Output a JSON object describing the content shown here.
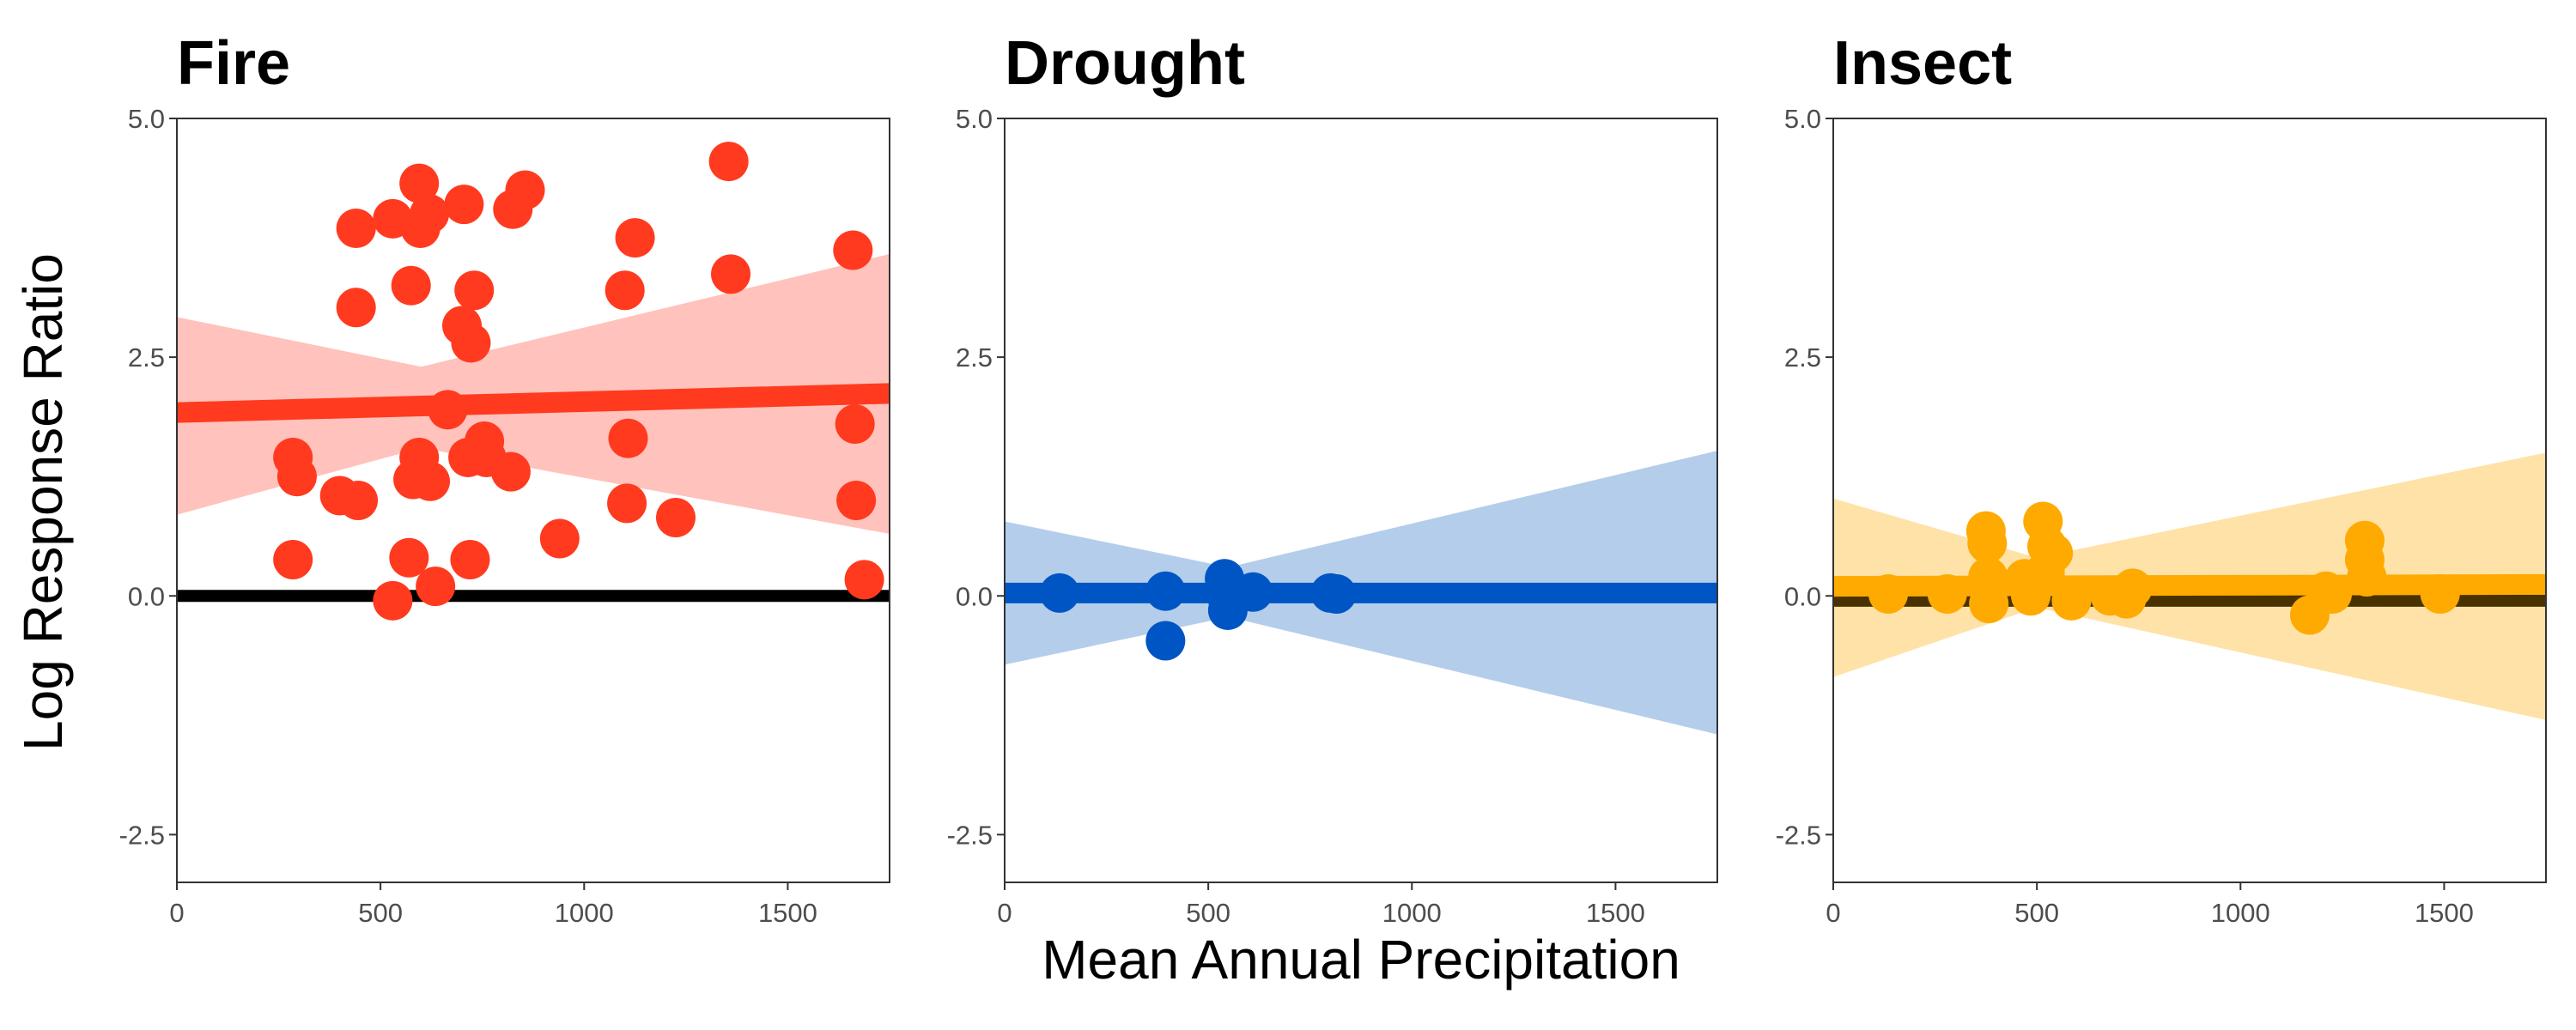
{
  "figure": {
    "ylabel": "Log Response Ratio",
    "xlabel": "Mean Annual Precipitation"
  },
  "chart_data": [
    {
      "type": "scatter",
      "title": "Fire",
      "color": "#FF3A1F",
      "band_color": "#FFC2BC",
      "xlim": [
        0,
        1750
      ],
      "ylim": [
        -3.0,
        5.0
      ],
      "x_ticks": [
        "0",
        "500",
        "1000",
        "1500"
      ],
      "y_ticks": [
        "5.0",
        "2.5",
        "0.0",
        "-2.5"
      ],
      "grid": false,
      "points": [
        {
          "x": 285,
          "y": 1.45
        },
        {
          "x": 295,
          "y": 1.25
        },
        {
          "x": 285,
          "y": 0.38
        },
        {
          "x": 400,
          "y": 1.05
        },
        {
          "x": 445,
          "y": 1.0
        },
        {
          "x": 440,
          "y": 3.85
        },
        {
          "x": 440,
          "y": 3.02
        },
        {
          "x": 530,
          "y": 3.95
        },
        {
          "x": 530,
          "y": -0.05
        },
        {
          "x": 570,
          "y": 0.4
        },
        {
          "x": 575,
          "y": 3.25
        },
        {
          "x": 580,
          "y": 1.22
        },
        {
          "x": 595,
          "y": 1.45
        },
        {
          "x": 595,
          "y": 4.32
        },
        {
          "x": 598,
          "y": 3.85
        },
        {
          "x": 620,
          "y": 4.0
        },
        {
          "x": 622,
          "y": 1.2
        },
        {
          "x": 635,
          "y": 0.1
        },
        {
          "x": 665,
          "y": 1.95
        },
        {
          "x": 700,
          "y": 2.83
        },
        {
          "x": 705,
          "y": 4.1
        },
        {
          "x": 715,
          "y": 1.45
        },
        {
          "x": 720,
          "y": 0.38
        },
        {
          "x": 722,
          "y": 2.65
        },
        {
          "x": 730,
          "y": 3.2
        },
        {
          "x": 755,
          "y": 1.62
        },
        {
          "x": 760,
          "y": 1.45
        },
        {
          "x": 820,
          "y": 1.3
        },
        {
          "x": 825,
          "y": 4.05
        },
        {
          "x": 855,
          "y": 4.25
        },
        {
          "x": 940,
          "y": 0.6
        },
        {
          "x": 1100,
          "y": 3.2
        },
        {
          "x": 1105,
          "y": 0.97
        },
        {
          "x": 1108,
          "y": 1.65
        },
        {
          "x": 1125,
          "y": 3.75
        },
        {
          "x": 1225,
          "y": 0.82
        },
        {
          "x": 1355,
          "y": 4.55
        },
        {
          "x": 1360,
          "y": 3.37
        },
        {
          "x": 1660,
          "y": 3.62
        },
        {
          "x": 1665,
          "y": 1.8
        },
        {
          "x": 1668,
          "y": 1.0
        },
        {
          "x": 1688,
          "y": 0.17
        }
      ],
      "fit": {
        "x": [
          0,
          1750
        ],
        "y": [
          1.92,
          2.12
        ]
      },
      "ci": {
        "x": [
          0,
          600,
          1750
        ],
        "upper": [
          2.92,
          2.4,
          3.58
        ],
        "lower": [
          0.85,
          1.55,
          0.65
        ]
      },
      "reference_line": {
        "y": 0,
        "color": "#000000"
      }
    },
    {
      "type": "scatter",
      "title": "Drought",
      "color": "#0055C4",
      "band_color": "#B4CDEB",
      "xlim": [
        0,
        1750
      ],
      "ylim": [
        -3.0,
        5.0
      ],
      "x_ticks": [
        "0",
        "500",
        "1000",
        "1500"
      ],
      "y_ticks": [
        "5.0",
        "2.5",
        "0.0",
        "-2.5"
      ],
      "grid": false,
      "points": [
        {
          "x": 135,
          "y": 0.03
        },
        {
          "x": 395,
          "y": 0.05
        },
        {
          "x": 395,
          "y": -0.47
        },
        {
          "x": 540,
          "y": 0.18
        },
        {
          "x": 545,
          "y": 0.0
        },
        {
          "x": 548,
          "y": -0.15
        },
        {
          "x": 610,
          "y": 0.04
        },
        {
          "x": 800,
          "y": 0.03
        },
        {
          "x": 815,
          "y": 0.02
        }
      ],
      "fit": {
        "x": [
          0,
          1750
        ],
        "y": [
          0.03,
          0.03
        ]
      },
      "ci": {
        "x": [
          0,
          550,
          1750
        ],
        "upper": [
          0.78,
          0.3,
          1.52
        ],
        "lower": [
          -0.72,
          -0.22,
          -1.45
        ]
      },
      "reference_line": {
        "y": 0,
        "color": "#000000"
      }
    },
    {
      "type": "scatter",
      "title": "Insect",
      "color": "#FFAA00",
      "band_color": "#FFE2A8",
      "xlim": [
        0,
        1750
      ],
      "ylim": [
        -3.0,
        5.0
      ],
      "x_ticks": [
        "0",
        "500",
        "1000",
        "1500"
      ],
      "y_ticks": [
        "5.0",
        "2.5",
        "0.0",
        "-2.5"
      ],
      "grid": false,
      "points": [
        {
          "x": 135,
          "y": 0.02
        },
        {
          "x": 280,
          "y": 0.02
        },
        {
          "x": 375,
          "y": 0.68
        },
        {
          "x": 378,
          "y": 0.55
        },
        {
          "x": 380,
          "y": 0.2
        },
        {
          "x": 382,
          "y": -0.08
        },
        {
          "x": 470,
          "y": 0.18
        },
        {
          "x": 485,
          "y": 0.0
        },
        {
          "x": 515,
          "y": 0.78
        },
        {
          "x": 520,
          "y": 0.25
        },
        {
          "x": 525,
          "y": 0.52
        },
        {
          "x": 540,
          "y": 0.45
        },
        {
          "x": 585,
          "y": -0.05
        },
        {
          "x": 680,
          "y": 0.0
        },
        {
          "x": 720,
          "y": -0.03
        },
        {
          "x": 735,
          "y": 0.08
        },
        {
          "x": 1170,
          "y": -0.2
        },
        {
          "x": 1210,
          "y": 0.05
        },
        {
          "x": 1225,
          "y": 0.02
        },
        {
          "x": 1305,
          "y": 0.58
        },
        {
          "x": 1305,
          "y": 0.38
        },
        {
          "x": 1310,
          "y": 0.2
        },
        {
          "x": 1490,
          "y": 0.02
        }
      ],
      "fit": {
        "x": [
          0,
          1750
        ],
        "y": [
          0.1,
          0.12
        ]
      },
      "ci": {
        "x": [
          0,
          500,
          1750
        ],
        "upper": [
          1.02,
          0.4,
          1.5
        ],
        "lower": [
          -0.85,
          -0.12,
          -1.3
        ]
      },
      "reference_line": {
        "y": -0.05,
        "color": "#4a3200"
      }
    }
  ]
}
